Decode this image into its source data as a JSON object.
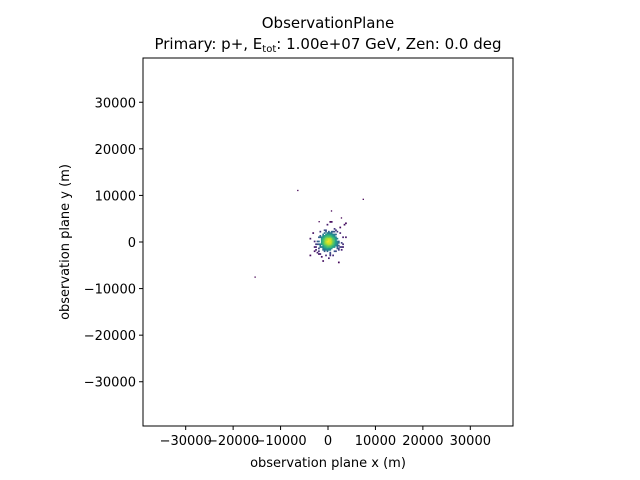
{
  "chart_data": {
    "type": "heatmap",
    "title": "ObservationPlane",
    "subtitle_prefix": "Primary: p+, E",
    "subtitle_subscript": "tot",
    "subtitle_suffix": ": 1.00e+07 GeV, Zen: 0.0 deg",
    "xlabel": "observation plane x (m)",
    "ylabel": "observation plane y (m)",
    "xlim": [
      -39000,
      39000
    ],
    "ylim": [
      -39500,
      39500
    ],
    "xticks": [
      -30000,
      -20000,
      -10000,
      0,
      10000,
      20000,
      30000
    ],
    "xtick_labels": [
      "−30000",
      "−20000",
      "−10000",
      "0",
      "10000",
      "20000",
      "30000"
    ],
    "yticks": [
      -30000,
      -20000,
      -10000,
      0,
      10000,
      20000,
      30000
    ],
    "ytick_labels": [
      "−30000",
      "−20000",
      "−10000",
      "0",
      "10000",
      "20000",
      "30000"
    ],
    "colormap": "viridis",
    "grid": false,
    "cluster_center": [
      0,
      0
    ],
    "cluster_extent_m": 3000,
    "outlier_points": [
      {
        "x": -6500,
        "y": 11200
      },
      {
        "x": 7300,
        "y": 9300
      },
      {
        "x": -15500,
        "y": -7400
      },
      {
        "x": 600,
        "y": 6800
      },
      {
        "x": -2000,
        "y": 4500
      },
      {
        "x": 2700,
        "y": 5300
      }
    ]
  }
}
